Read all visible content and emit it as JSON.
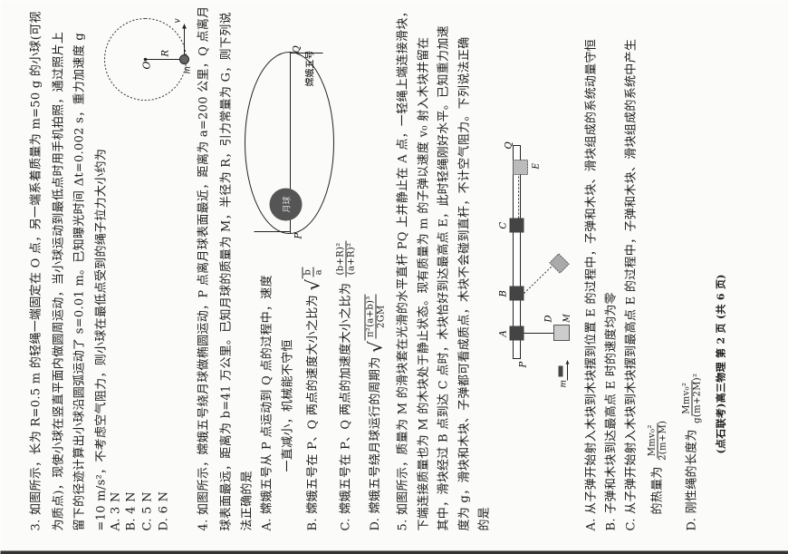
{
  "q3": {
    "lines": [
      "3. 如图所示，长为 R=0.5 m 的轻绳一端固定在 O 点，另一端系着质量为 m=50 g 的小球(可视",
      "为质点)，现使小球在竖直平面内做圆周运动，当小球运动到最低点时用手机拍照，通过照片上",
      "留下的径迹计算出小球沿圆弧运动了 s=0.01 m。已知曝光时间 Δt=0.002 s，重力加速度 g",
      "=10 m/s²，不考虑空气阻力，则小球在最低点受到的绳子拉力大小约为"
    ],
    "options": [
      "A. 3 N",
      "B. 4 N",
      "C. 5 N",
      "D. 6 N"
    ],
    "figure": {
      "center": "O",
      "radius": "R",
      "ball": "m",
      "velocity": "v"
    }
  },
  "q4": {
    "lines": [
      "4. 如图所示，嫦娥五号绕月球做椭圆运动，P 点离月球表面最近，距离为 a=200 公里，Q 点离月",
      "球表面最远，距离为 b=41 万公里。已知月球的质量为 M，半径为 R，引力常量为 G，则下列说",
      "法正确的是"
    ],
    "optA": [
      "A. 嫦娥五号从 P 点运动到 Q 点的过程中，速度",
      "一直减小，机械能不守恒"
    ],
    "optB": {
      "text": "B. 嫦娥五号在 P、Q 两点的速度大小之比为",
      "num": "b",
      "den": "a"
    },
    "optC": {
      "text": "C. 嫦娥五号在 P、Q 两点的加速度大小之比为",
      "num": "(b+R)²",
      "den": "(a+R)²"
    },
    "optD": {
      "text": "D. 嫦娥五号绕月球运行的周期为",
      "num": "π²(a+b)³",
      "den": "2GM"
    },
    "figure": {
      "moon": "月球",
      "probe": "嫦娥五号",
      "p": "P",
      "q": "Q"
    }
  },
  "q5": {
    "lines": [
      "5. 如图所示，质量为 M 的滑块套在光滑的水平直杆 PQ 上并静止在 A 点，一轻绳上端连接滑块，",
      "下端连接质量也为 M 的木块处于静止状态。现有质量为 m 的子弹以速度 v₀ 射入木块并留在",
      "其中，滑块经过 B 点到达 C 点时，木块恰好到达最高点 E，此时轻绳刚好水平。已知重力加速",
      "度为 g，滑块和木块、子弹都可看成质点，木块不会碰到直杆，不计空气阻力。下列说法正确",
      "的是"
    ],
    "optA": "A. 从子弹开始射入木块到木块摆到位置 E 的过程中，子弹和木块、滑块组成的系统动量守恒",
    "optB": "B. 子弹和木块到达最高点 E 时的速度均为零",
    "optC": [
      "C. 从子弹开始射入木块到木块摆到最高点 E 的过程中，子弹和木块、滑块组成的系统中产生",
      "的热量为"
    ],
    "optC_frac": {
      "num": "Mmv₀²",
      "den": "2(m+M)"
    },
    "optD": {
      "text": "D. 刚性绳的长度为",
      "num": "Mmv₀²",
      "den": "g(m+2M)²"
    },
    "figure": {
      "p": "P",
      "q": "Q",
      "a": "A",
      "b": "B",
      "c": "C",
      "d": "D",
      "e": "E",
      "mass": "M",
      "bullet": "m"
    }
  },
  "footer": "(点石联考)高三物理 第 2 页 (共 6 页)"
}
